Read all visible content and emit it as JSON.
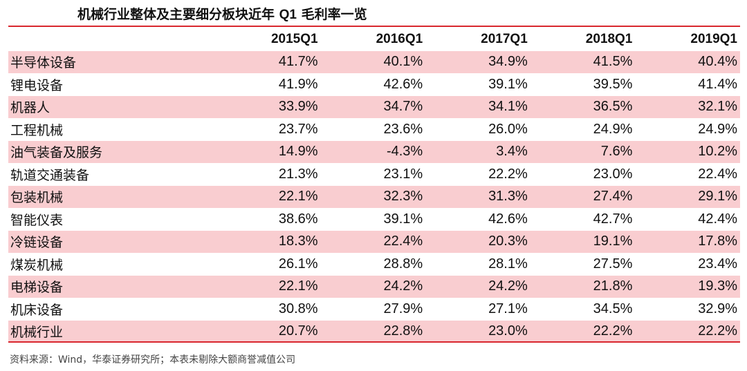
{
  "title": {
    "prefix": "机械行业整体及主要细分板块近年 ",
    "q1": "Q1",
    "suffix": " 毛利率一览"
  },
  "table": {
    "headers": [
      "",
      "2015Q1",
      "2016Q1",
      "2017Q1",
      "2018Q1",
      "2019Q1"
    ],
    "rows": [
      {
        "label": "半导体设备",
        "values": [
          "41.7%",
          "40.1%",
          "34.9%",
          "41.5%",
          "40.4%"
        ]
      },
      {
        "label": "锂电设备",
        "values": [
          "41.9%",
          "42.6%",
          "39.1%",
          "39.5%",
          "41.4%"
        ]
      },
      {
        "label": "机器人",
        "values": [
          "33.9%",
          "34.7%",
          "34.1%",
          "36.5%",
          "32.1%"
        ]
      },
      {
        "label": "工程机械",
        "values": [
          "23.7%",
          "23.6%",
          "26.0%",
          "24.9%",
          "24.9%"
        ]
      },
      {
        "label": "油气装备及服务",
        "values": [
          "14.9%",
          "-4.3%",
          "3.4%",
          "7.6%",
          "10.2%"
        ]
      },
      {
        "label": "轨道交通装备",
        "values": [
          "21.3%",
          "23.1%",
          "22.2%",
          "23.0%",
          "22.4%"
        ]
      },
      {
        "label": "包装机械",
        "values": [
          "22.1%",
          "32.3%",
          "31.3%",
          "27.4%",
          "29.1%"
        ]
      },
      {
        "label": "智能仪表",
        "values": [
          "38.6%",
          "39.1%",
          "42.6%",
          "42.7%",
          "42.4%"
        ]
      },
      {
        "label": "冷链设备",
        "values": [
          "18.3%",
          "22.4%",
          "20.3%",
          "19.1%",
          "17.8%"
        ]
      },
      {
        "label": "煤炭机械",
        "values": [
          "26.1%",
          "28.8%",
          "28.1%",
          "27.5%",
          "23.4%"
        ]
      },
      {
        "label": "电梯设备",
        "values": [
          "22.1%",
          "24.2%",
          "24.2%",
          "21.8%",
          "19.3%"
        ]
      },
      {
        "label": "机床设备",
        "values": [
          "30.8%",
          "27.9%",
          "27.1%",
          "34.5%",
          "32.9%"
        ]
      },
      {
        "label": "机械行业",
        "values": [
          "20.7%",
          "22.8%",
          "23.0%",
          "22.2%",
          "22.2%"
        ]
      }
    ]
  },
  "source": "资料来源：Wind，华泰证券研究所；本表未剔除大额商誉减值公司",
  "colors": {
    "accent_rule": "#d9272e",
    "row_shade": "#f9cdd0"
  }
}
